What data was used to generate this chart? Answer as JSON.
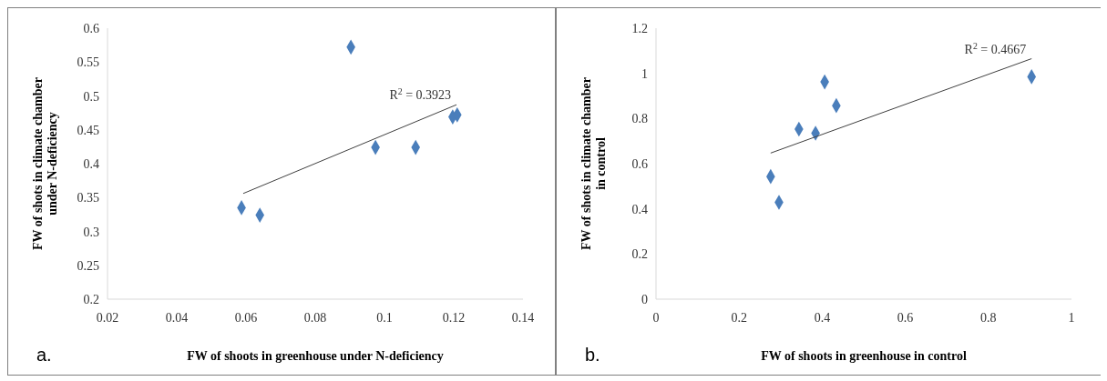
{
  "chart_data": [
    {
      "type": "scatter",
      "xlabel": "FW of shoots in greenhouse under N-deficiency",
      "ylabel": "FW of shots in climate chamber under N-deficiency",
      "xlim": [
        0.02,
        0.14
      ],
      "xticks": [
        0.02,
        0.04,
        0.06,
        0.08,
        0.1,
        0.12,
        0.14
      ],
      "ylim": [
        0.2,
        0.6
      ],
      "yticks": [
        0.2,
        0.25,
        0.3,
        0.35,
        0.4,
        0.45,
        0.5,
        0.55,
        0.6
      ],
      "grid": false,
      "annotations": [
        "R$^{2}$ = 0.3923",
        "a."
      ],
      "series": [
        {
          "marker": "diamond",
          "color": "#4a7ebb",
          "x": [
            0.0587,
            0.064,
            0.0903,
            0.0974,
            0.109,
            0.1197,
            0.121
          ],
          "values": [
            0.335,
            0.324,
            0.572,
            0.424,
            0.424,
            0.469,
            0.472
          ]
        },
        {
          "type": "line",
          "color": "#404040",
          "x": [
            0.0592,
            0.1208
          ],
          "values": [
            0.356,
            0.487
          ]
        }
      ]
    },
    {
      "type": "scatter",
      "xlabel": "FW of shoots in greenhouse in control",
      "ylabel": "FW of shots in climate chamber in control",
      "xlim": [
        0,
        1
      ],
      "xticks": [
        0,
        0.2,
        0.4,
        0.6,
        0.8,
        1
      ],
      "ylim": [
        0,
        1.2
      ],
      "yticks": [
        0,
        0.2,
        0.4,
        0.6,
        0.8,
        1,
        1.2
      ],
      "grid": false,
      "annotations": [
        "R$^{2}$ = 0.4667",
        "b."
      ],
      "series": [
        {
          "marker": "diamond",
          "color": "#4a7ebb",
          "x": [
            0.276,
            0.296,
            0.344,
            0.384,
            0.406,
            0.434,
            0.904
          ],
          "values": [
            0.543,
            0.429,
            0.753,
            0.735,
            0.962,
            0.857,
            0.985
          ]
        },
        {
          "type": "line",
          "color": "#404040",
          "x": [
            0.276,
            0.904
          ],
          "values": [
            0.647,
            1.065
          ]
        }
      ]
    }
  ]
}
